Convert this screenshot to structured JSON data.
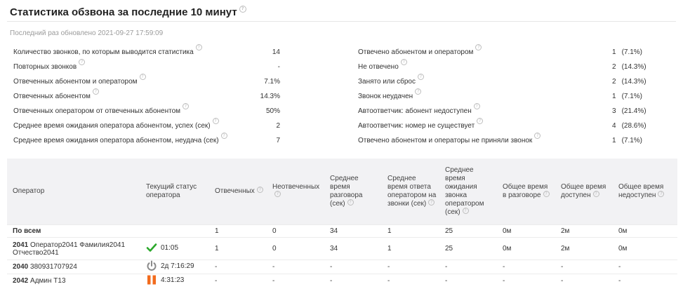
{
  "header": {
    "title": "Статистика обзвона за последние 10 минут",
    "updated": "Последний раз обновлено 2021-09-27 17:59:09"
  },
  "left_stats": [
    {
      "label": "Количество звонков, по которым выводится статистика",
      "value": "14"
    },
    {
      "label": "Повторных звонков",
      "value": "-"
    },
    {
      "label": "Отвеченных абонентом и оператором",
      "value": "7.1%"
    },
    {
      "label": "Отвеченных абонентом",
      "value": "14.3%"
    },
    {
      "label": "Отвеченных оператором от отвеченных абонентом",
      "value": "50%"
    },
    {
      "label": "Среднее время ожидания оператора абонентом, успех (сек)",
      "value": "2"
    },
    {
      "label": "Среднее время ожидания оператора абонентом, неудача (сек)",
      "value": "7"
    }
  ],
  "right_stats": [
    {
      "label": "Отвечено абонентом и оператором",
      "count": "1",
      "pct": "(7.1%)"
    },
    {
      "label": "Не отвечено",
      "count": "2",
      "pct": "(14.3%)"
    },
    {
      "label": "Занято или сброс",
      "count": "2",
      "pct": "(14.3%)"
    },
    {
      "label": "Звонок неудачен",
      "count": "1",
      "pct": "(7.1%)"
    },
    {
      "label": "Автоответчик: абонент недоступен",
      "count": "3",
      "pct": "(21.4%)"
    },
    {
      "label": "Автоответчик: номер не существует",
      "count": "4",
      "pct": "(28.6%)"
    },
    {
      "label": "Отвечено абонентом и операторы не приняли звонок",
      "count": "1",
      "pct": "(7.1%)"
    }
  ],
  "table": {
    "columns": [
      "Оператор",
      "Текущий статус оператора",
      "Отвеченных",
      "Неотвеченных",
      "Среднее время разговора (сек)",
      "Среднее время ответа оператором на звонки (сек)",
      "Среднее время ожидания звонка оператором (сек)",
      "Общее время в разговоре",
      "Общее время доступен",
      "Общее время недоступен"
    ],
    "summary": {
      "name": "По всем",
      "cells": [
        "1",
        "0",
        "34",
        "1",
        "25",
        "0м",
        "2м",
        "0м"
      ]
    },
    "operators": [
      {
        "id": "2041",
        "name": "Оператор2041 Фамилия2041 Отчество2041",
        "status_icon": "checkmark-icon",
        "status_color": "#2aa82a",
        "status_time": "01:05",
        "cells": [
          "1",
          "0",
          "34",
          "1",
          "25",
          "0м",
          "2м",
          "0м"
        ]
      },
      {
        "id": "2040",
        "name": "380931707924",
        "status_icon": "power-icon",
        "status_color": "#8a8a8a",
        "status_time": "2д 7:16:29",
        "cells": [
          "-",
          "-",
          "-",
          "-",
          "-",
          "-",
          "-",
          "-"
        ]
      },
      {
        "id": "2042",
        "name": "Админ Т13",
        "status_icon": "pause-icon",
        "status_color": "#f26b1d",
        "status_time": "4:31:23",
        "cells": [
          "-",
          "-",
          "-",
          "-",
          "-",
          "-",
          "-",
          "-"
        ]
      }
    ]
  }
}
